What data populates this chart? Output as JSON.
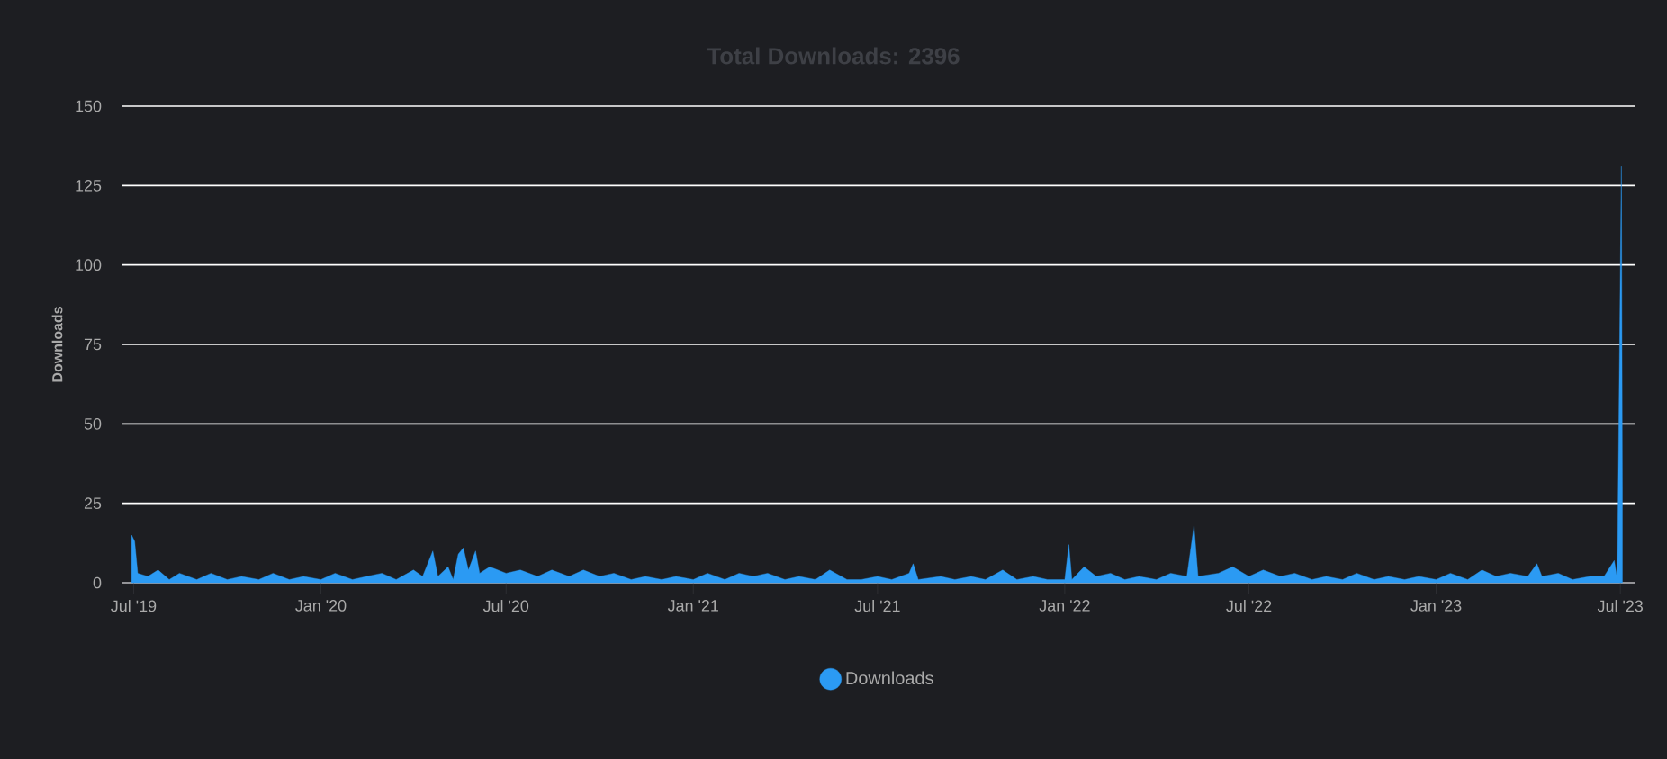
{
  "chart_data": {
    "type": "area",
    "title": "Total Downloads: 2396",
    "ylabel": "Downloads",
    "x": [
      "2019-06-29",
      "2019-07-02",
      "2019-07-05",
      "2019-07-15",
      "2019-07-25",
      "2019-08-05",
      "2019-08-15",
      "2019-09-01",
      "2019-09-15",
      "2019-10-01",
      "2019-10-15",
      "2019-11-01",
      "2019-11-15",
      "2019-12-01",
      "2019-12-15",
      "2020-01-01",
      "2020-01-15",
      "2020-02-01",
      "2020-02-15",
      "2020-03-01",
      "2020-03-15",
      "2020-04-01",
      "2020-04-10",
      "2020-04-20",
      "2020-04-25",
      "2020-05-05",
      "2020-05-10",
      "2020-05-15",
      "2020-05-20",
      "2020-05-25",
      "2020-06-01",
      "2020-06-05",
      "2020-06-15",
      "2020-07-01",
      "2020-07-15",
      "2020-08-01",
      "2020-08-15",
      "2020-09-01",
      "2020-09-15",
      "2020-10-01",
      "2020-10-15",
      "2020-11-01",
      "2020-11-15",
      "2020-12-01",
      "2020-12-15",
      "2021-01-01",
      "2021-01-15",
      "2021-02-01",
      "2021-02-15",
      "2021-03-01",
      "2021-03-15",
      "2021-04-01",
      "2021-04-15",
      "2021-05-01",
      "2021-05-15",
      "2021-06-01",
      "2021-06-15",
      "2021-07-01",
      "2021-07-15",
      "2021-08-01",
      "2021-08-05",
      "2021-08-10",
      "2021-09-01",
      "2021-09-15",
      "2021-10-01",
      "2021-10-15",
      "2021-11-01",
      "2021-11-15",
      "2021-12-01",
      "2021-12-15",
      "2022-01-01",
      "2022-01-05",
      "2022-01-08",
      "2022-01-20",
      "2022-02-01",
      "2022-02-15",
      "2022-03-01",
      "2022-03-15",
      "2022-04-01",
      "2022-04-15",
      "2022-05-01",
      "2022-05-08",
      "2022-05-12",
      "2022-06-01",
      "2022-06-15",
      "2022-07-01",
      "2022-07-15",
      "2022-08-01",
      "2022-08-15",
      "2022-09-01",
      "2022-09-15",
      "2022-10-01",
      "2022-10-15",
      "2022-11-01",
      "2022-11-15",
      "2022-12-01",
      "2022-12-15",
      "2023-01-01",
      "2023-01-15",
      "2023-02-01",
      "2023-02-15",
      "2023-03-01",
      "2023-03-15",
      "2023-04-01",
      "2023-04-10",
      "2023-04-15",
      "2023-05-01",
      "2023-05-15",
      "2023-06-01",
      "2023-06-15",
      "2023-06-25",
      "2023-06-28",
      "2023-07-02",
      "2023-07-03"
    ],
    "series": [
      {
        "name": "Downloads",
        "color": "#2b9af3",
        "values": [
          15,
          13,
          3,
          2,
          4,
          1,
          3,
          1,
          3,
          1,
          2,
          1,
          3,
          1,
          2,
          1,
          3,
          1,
          2,
          3,
          1,
          4,
          2,
          10,
          2,
          5,
          1,
          9,
          11,
          4,
          10,
          3,
          5,
          3,
          4,
          2,
          4,
          2,
          4,
          2,
          3,
          1,
          2,
          1,
          2,
          1,
          3,
          1,
          3,
          2,
          3,
          1,
          2,
          1,
          4,
          1,
          1,
          2,
          1,
          3,
          6,
          1,
          2,
          1,
          2,
          1,
          4,
          1,
          2,
          1,
          1,
          12,
          1,
          5,
          2,
          3,
          1,
          2,
          1,
          3,
          2,
          18,
          2,
          3,
          5,
          2,
          4,
          2,
          3,
          1,
          2,
          1,
          3,
          1,
          2,
          1,
          2,
          1,
          3,
          1,
          4,
          2,
          3,
          2,
          6,
          2,
          3,
          1,
          2,
          2,
          7,
          1,
          131,
          30
        ]
      }
    ],
    "xlim": [
      "2019-06-20",
      "2023-07-15"
    ],
    "xticks": [
      {
        "value": "2019-07-01",
        "label": "Jul '19"
      },
      {
        "value": "2020-01-01",
        "label": "Jan '20"
      },
      {
        "value": "2020-07-01",
        "label": "Jul '20"
      },
      {
        "value": "2021-01-01",
        "label": "Jan '21"
      },
      {
        "value": "2021-07-01",
        "label": "Jul '21"
      },
      {
        "value": "2022-01-01",
        "label": "Jan '22"
      },
      {
        "value": "2022-07-01",
        "label": "Jul '22"
      },
      {
        "value": "2023-01-01",
        "label": "Jan '23"
      },
      {
        "value": "2023-07-01",
        "label": "Jul '23"
      }
    ],
    "ylim": [
      0,
      150
    ],
    "yticks": [
      0,
      25,
      50,
      75,
      100,
      125,
      150
    ],
    "grid": "y",
    "legend": "bottom"
  }
}
